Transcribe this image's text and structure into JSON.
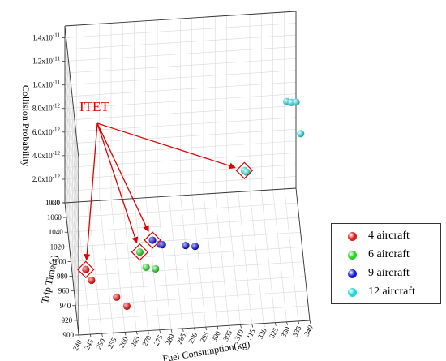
{
  "chart_data": {
    "type": "scatter",
    "xlabel": "Fuel Consumption(kg)",
    "ylabel": "Trip Time(s)",
    "zlabel": "Collision Probability",
    "x_ticks": [
      "240",
      "245",
      "250",
      "255",
      "260",
      "265",
      "270",
      "275",
      "280",
      "285",
      "290",
      "295",
      "300",
      "305",
      "310",
      "315",
      "320",
      "325",
      "330",
      "335",
      "340"
    ],
    "y_ticks": [
      "900",
      "920",
      "940",
      "960",
      "980",
      "1000",
      "1020",
      "1040",
      "1060",
      "1080"
    ],
    "z_ticks": [
      "0.0",
      "2.0x10-12",
      "4.0x10-12",
      "6.0x10-12",
      "8.0x10-12",
      "1.0x10-11",
      "1.2x10-11",
      "1.4x10-11"
    ],
    "annotation": "ITET",
    "series": [
      {
        "name": "4 aircraft",
        "color": "#e31a1c",
        "points": [
          [
            246,
            988,
            0
          ],
          [
            248,
            973,
            0
          ],
          [
            258,
            948,
            0
          ],
          [
            262,
            935,
            0
          ]
        ]
      },
      {
        "name": "6 aircraft",
        "color": "#2bd02b",
        "points": [
          [
            270,
            1007,
            0
          ],
          [
            272,
            986,
            0
          ],
          [
            276,
            983,
            0
          ]
        ]
      },
      {
        "name": "9 aircraft",
        "color": "#1a1adc",
        "points": [
          [
            276,
            1022,
            0
          ],
          [
            279,
            1016,
            0
          ],
          [
            280,
            1015,
            0
          ],
          [
            290,
            1012,
            0
          ],
          [
            294,
            1010,
            0
          ]
        ]
      },
      {
        "name": "12 aircraft",
        "color": "#22d8d8",
        "points": [
          [
            318,
            1090,
            1.15e-12
          ],
          [
            319,
            1090,
            1e-12
          ],
          [
            336,
            1080,
            7.4e-12
          ],
          [
            338,
            1080,
            7.3e-12
          ],
          [
            340,
            1080,
            7.3e-12
          ],
          [
            342,
            1080,
            4.6e-12
          ]
        ]
      }
    ],
    "legend": [
      {
        "label": "4 aircraft",
        "color": "#e31a1c"
      },
      {
        "label": "6 aircraft",
        "color": "#2bd02b"
      },
      {
        "label": "9 aircraft",
        "color": "#1a1adc"
      },
      {
        "label": "12 aircraft",
        "color": "#22d8d8"
      }
    ],
    "legend_position": "right",
    "grid": true
  }
}
